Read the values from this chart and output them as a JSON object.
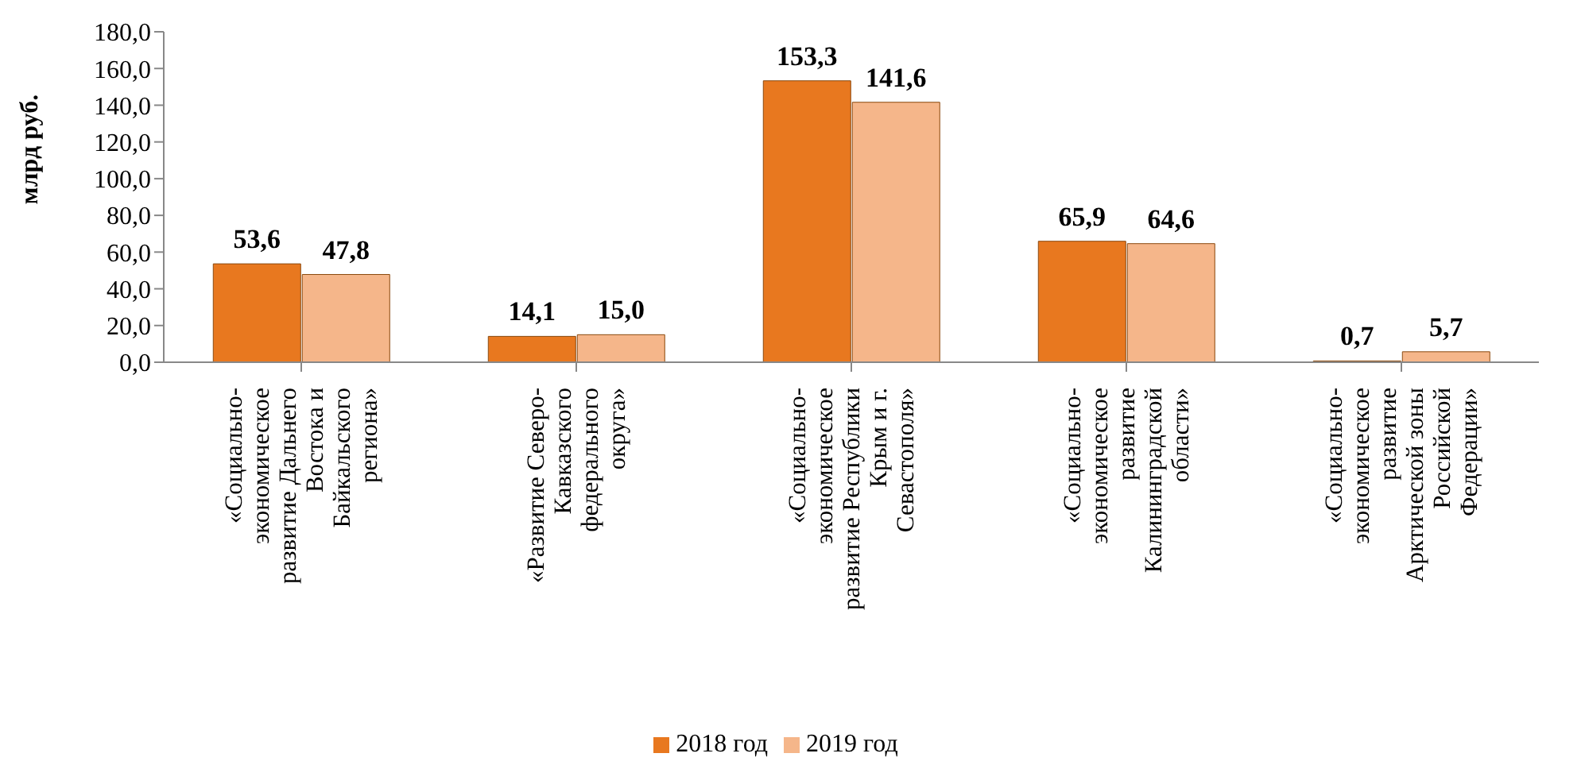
{
  "chart_data": {
    "type": "bar",
    "ylabel": "млрд руб.",
    "categories": [
      "«Социально-экономическое развитие Дальнего Востока и Байкальского региона»",
      "«Развитие Северо-Кавказского федерального округа»",
      "«Социально-экономическое развитие Республики Крым и г. Севастополя»",
      "«Социально-экономическое развитие Калининградской области»",
      "«Социально-экономическое развитие Арктической зоны Российской Федерации»"
    ],
    "series": [
      {
        "name": "2018 год",
        "color": "#e8781f",
        "values": [
          53.6,
          14.1,
          153.3,
          65.9,
          0.7
        ],
        "value_labels": [
          "53,6",
          "14,1",
          "153,3",
          "65,9",
          "0,7"
        ]
      },
      {
        "name": "2019 год",
        "color": "#f5b68a",
        "values": [
          47.8,
          15.0,
          141.6,
          64.6,
          5.7
        ],
        "value_labels": [
          "47,8",
          "15,0",
          "141,6",
          "64,6",
          "5,7"
        ]
      }
    ],
    "ylim": [
      0,
      180
    ],
    "yticks": [
      {
        "value": 0,
        "label": "0,0"
      },
      {
        "value": 20,
        "label": "20,0"
      },
      {
        "value": 40,
        "label": "40,0"
      },
      {
        "value": 60,
        "label": "60,0"
      },
      {
        "value": 80,
        "label": "80,0"
      },
      {
        "value": 100,
        "label": "100,0"
      },
      {
        "value": 120,
        "label": "120,0"
      },
      {
        "value": 140,
        "label": "140,0"
      },
      {
        "value": 160,
        "label": "160,0"
      },
      {
        "value": 180,
        "label": "180,0"
      }
    ],
    "grid": false,
    "legend": "bottom"
  }
}
